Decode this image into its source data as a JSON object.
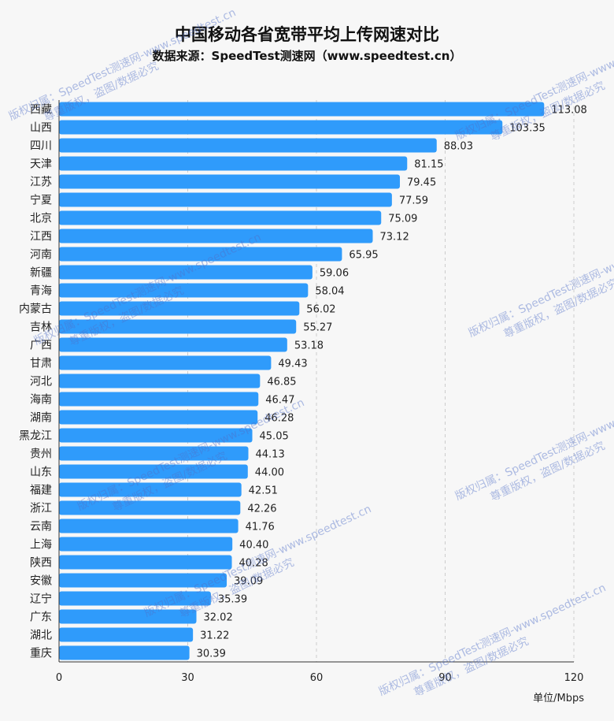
{
  "title": "中国移动各省宽带平均上传网速对比",
  "subtitle": "数据来源：SpeedTest测速网（www.speedtest.cn）",
  "unit_label": "单位/Mbps",
  "watermark": {
    "line1": "版权归属：SpeedTest测速网-www.speedtest.cn",
    "line2": "尊重版权，盗图/数据必究"
  },
  "colors": {
    "bar": "#2f9bfb",
    "grid": "#cccccc",
    "axis": "#333333"
  },
  "chart_data": {
    "type": "bar",
    "orientation": "horizontal",
    "title": "中国移动各省宽带平均上传网速对比",
    "xlabel": "单位/Mbps",
    "ylabel": "",
    "xlim": [
      0,
      120
    ],
    "xticks": [
      0,
      30,
      60,
      90,
      120
    ],
    "grid": true,
    "categories": [
      "西藏",
      "山西",
      "四川",
      "天津",
      "江苏",
      "宁夏",
      "北京",
      "江西",
      "河南",
      "新疆",
      "青海",
      "内蒙古",
      "吉林",
      "广西",
      "甘肃",
      "河北",
      "海南",
      "湖南",
      "黑龙江",
      "贵州",
      "山东",
      "福建",
      "浙江",
      "云南",
      "上海",
      "陕西",
      "安徽",
      "辽宁",
      "广东",
      "湖北",
      "重庆"
    ],
    "values": [
      113.08,
      103.35,
      88.03,
      81.15,
      79.45,
      77.59,
      75.09,
      73.12,
      65.95,
      59.06,
      58.04,
      56.02,
      55.27,
      53.18,
      49.43,
      46.85,
      46.47,
      46.28,
      45.05,
      44.13,
      44.0,
      42.51,
      42.26,
      41.76,
      40.4,
      40.28,
      39.09,
      35.39,
      32.02,
      31.22,
      30.39
    ],
    "value_labels": [
      "113.08",
      "103.35",
      "88.03",
      "81.15",
      "79.45",
      "77.59",
      "75.09",
      "73.12",
      "65.95",
      "59.06",
      "58.04",
      "56.02",
      "55.27",
      "53.18",
      "49.43",
      "46.85",
      "46.47",
      "46.28",
      "45.05",
      "44.13",
      "44.00",
      "42.51",
      "42.26",
      "41.76",
      "40.40",
      "40.28",
      "39.09",
      "35.39",
      "32.02",
      "31.22",
      "30.39"
    ]
  }
}
